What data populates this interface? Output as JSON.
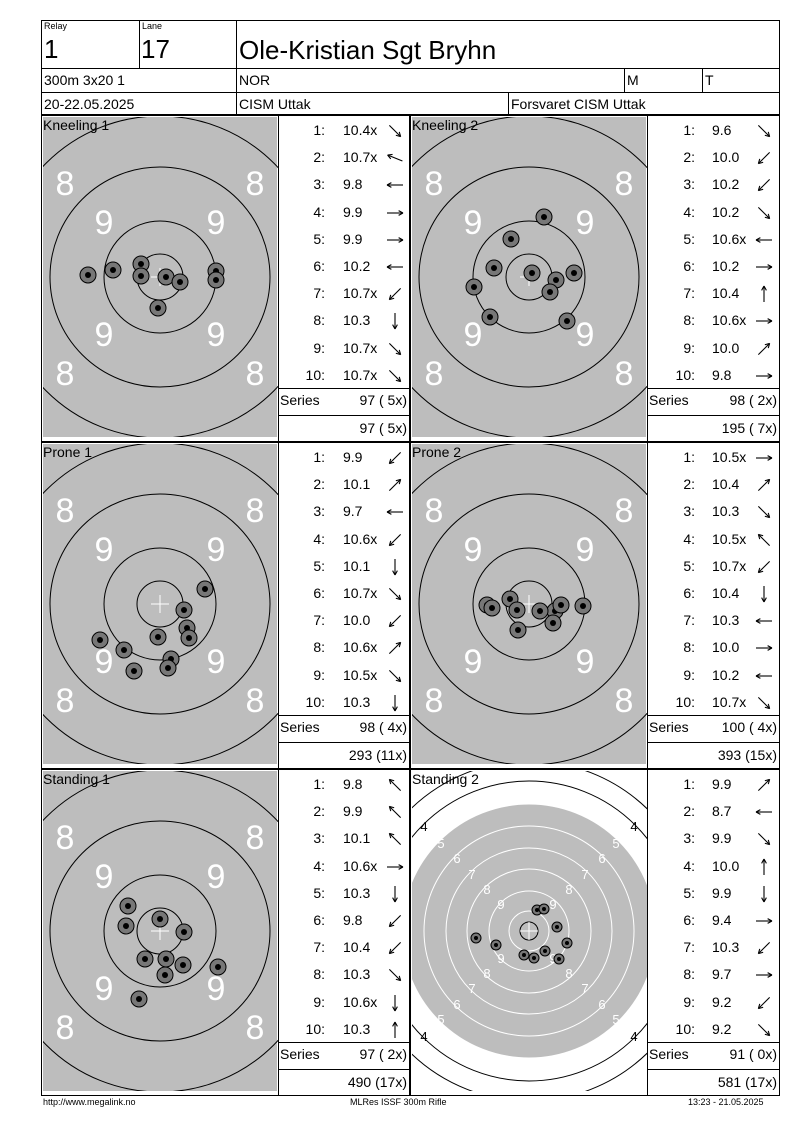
{
  "header": {
    "relay_label": "Relay",
    "relay": "1",
    "lane_label": "Lane",
    "lane": "17",
    "name": "Ole-Kristian Sgt Bryhn",
    "event": "300m 3x20 1",
    "nation": "NOR",
    "gender": "M",
    "category": "T",
    "dates": "20-22.05.2025",
    "competition": "CISM Uttak",
    "club": "Forsvaret CISM Uttak"
  },
  "labels": {
    "series": "Series"
  },
  "panels": [
    {
      "title": "Kneeling 1",
      "series": "97 ( 5x)",
      "cumulative": "97 ( 5x)",
      "shots": [
        [
          "1:",
          "10.4x",
          "se"
        ],
        [
          "2:",
          "10.7x",
          "wnw"
        ],
        [
          "3:",
          "9.8",
          "w"
        ],
        [
          "4:",
          "9.9",
          "e"
        ],
        [
          "5:",
          "9.9",
          "e"
        ],
        [
          "6:",
          "10.2",
          "w"
        ],
        [
          "7:",
          "10.7x",
          "sw"
        ],
        [
          "8:",
          "10.3",
          "s"
        ],
        [
          "9:",
          "10.7x",
          "se"
        ],
        [
          "10:",
          "10.7x",
          "se"
        ]
      ]
    },
    {
      "title": "Kneeling 2",
      "series": "98 ( 2x)",
      "cumulative": "195 ( 7x)",
      "shots": [
        [
          "1:",
          "9.6",
          "se"
        ],
        [
          "2:",
          "10.0",
          "sw"
        ],
        [
          "3:",
          "10.2",
          "sw"
        ],
        [
          "4:",
          "10.2",
          "se"
        ],
        [
          "5:",
          "10.6x",
          "w"
        ],
        [
          "6:",
          "10.2",
          "e"
        ],
        [
          "7:",
          "10.4",
          "n"
        ],
        [
          "8:",
          "10.6x",
          "e"
        ],
        [
          "9:",
          "10.0",
          "ne"
        ],
        [
          "10:",
          "9.8",
          "e"
        ]
      ]
    },
    {
      "title": "Prone 1",
      "series": "98 ( 4x)",
      "cumulative": "293 (11x)",
      "shots": [
        [
          "1:",
          "9.9",
          "sw"
        ],
        [
          "2:",
          "10.1",
          "ne"
        ],
        [
          "3:",
          "9.7",
          "w"
        ],
        [
          "4:",
          "10.6x",
          "sw"
        ],
        [
          "5:",
          "10.1",
          "s"
        ],
        [
          "6:",
          "10.7x",
          "se"
        ],
        [
          "7:",
          "10.0",
          "sw"
        ],
        [
          "8:",
          "10.6x",
          "ne"
        ],
        [
          "9:",
          "10.5x",
          "se"
        ],
        [
          "10:",
          "10.3",
          "s"
        ]
      ]
    },
    {
      "title": "Prone 2",
      "series": "100 ( 4x)",
      "cumulative": "393 (15x)",
      "shots": [
        [
          "1:",
          "10.5x",
          "e"
        ],
        [
          "2:",
          "10.4",
          "ne"
        ],
        [
          "3:",
          "10.3",
          "se"
        ],
        [
          "4:",
          "10.5x",
          "nw"
        ],
        [
          "5:",
          "10.7x",
          "sw"
        ],
        [
          "6:",
          "10.4",
          "s"
        ],
        [
          "7:",
          "10.3",
          "w"
        ],
        [
          "8:",
          "10.0",
          "e"
        ],
        [
          "9:",
          "10.2",
          "w"
        ],
        [
          "10:",
          "10.7x",
          "se"
        ]
      ]
    },
    {
      "title": "Standing 1",
      "series": "97 ( 2x)",
      "cumulative": "490 (17x)",
      "shots": [
        [
          "1:",
          "9.8",
          "nw"
        ],
        [
          "2:",
          "9.9",
          "nw"
        ],
        [
          "3:",
          "10.1",
          "nw"
        ],
        [
          "4:",
          "10.6x",
          "e"
        ],
        [
          "5:",
          "10.3",
          "s"
        ],
        [
          "6:",
          "9.8",
          "sw"
        ],
        [
          "7:",
          "10.4",
          "sw"
        ],
        [
          "8:",
          "10.3",
          "se"
        ],
        [
          "9:",
          "10.6x",
          "s"
        ],
        [
          "10:",
          "10.3",
          "n"
        ]
      ]
    },
    {
      "title": "Standing 2",
      "series": "91 ( 0x)",
      "cumulative": "581 (17x)",
      "shots": [
        [
          "1:",
          "9.9",
          "ne"
        ],
        [
          "2:",
          "8.7",
          "w"
        ],
        [
          "3:",
          "9.9",
          "se"
        ],
        [
          "4:",
          "10.0",
          "n"
        ],
        [
          "5:",
          "9.9",
          "s"
        ],
        [
          "6:",
          "9.4",
          "e"
        ],
        [
          "7:",
          "10.3",
          "sw"
        ],
        [
          "8:",
          "9.7",
          "e"
        ],
        [
          "9:",
          "9.2",
          "sw"
        ],
        [
          "10:",
          "9.2",
          "se"
        ]
      ]
    }
  ],
  "target_labels": {
    "eight": "8",
    "nine": "9",
    "four": "4",
    "five": "5",
    "six": "6",
    "seven": "7"
  },
  "footer": {
    "left": "http://www.megalink.no",
    "center": "MLRes ISSF 300m Rifle",
    "right": "13:23 - 21.05.2025"
  }
}
